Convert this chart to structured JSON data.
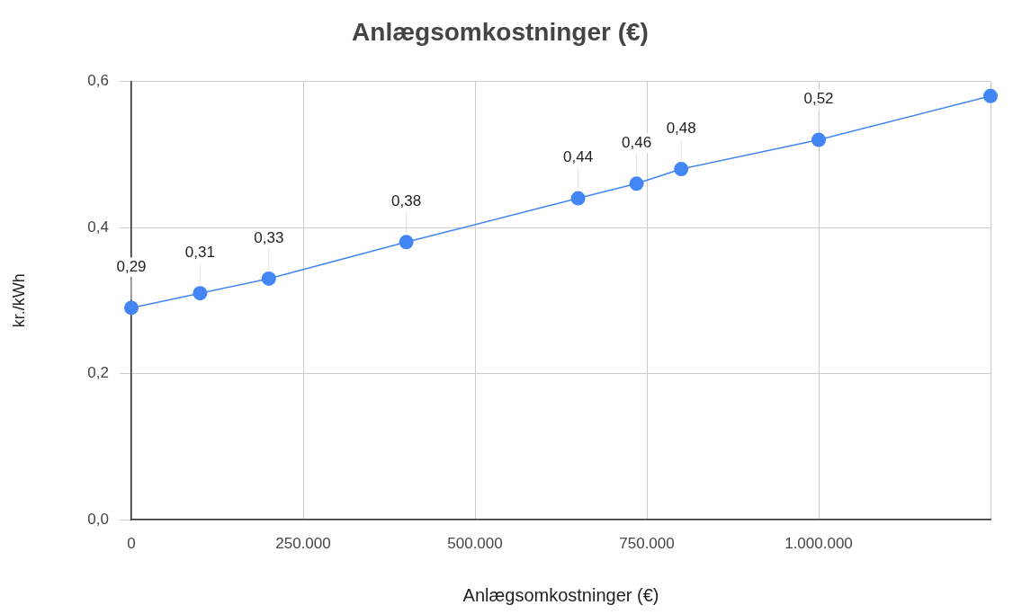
{
  "chart_data": {
    "type": "line",
    "title": "Anlægsomkostninger (€)",
    "xlabel": "Anlægsomkostninger (€)",
    "ylabel": "kr./kWh",
    "x": [
      0,
      100000,
      200000,
      400000,
      650000,
      735000,
      800000,
      1000000,
      1250000
    ],
    "series": [
      {
        "color": "#4285f4",
        "values": [
          0.29,
          0.31,
          0.33,
          0.38,
          0.44,
          0.46,
          0.48,
          0.52,
          0.58
        ],
        "value_labels": [
          "0,29",
          "0,31",
          "0,33",
          "0,38",
          "0,44",
          "0,46",
          "0,48",
          "0,52",
          null
        ]
      }
    ],
    "xlim": [
      0,
      1250000
    ],
    "xticks": [
      0,
      {
        "value": 250000,
        "label": "250.000"
      },
      {
        "value": 500000,
        "label": "500.000"
      },
      {
        "value": 750000,
        "label": "750.000"
      },
      {
        "value": 1000000,
        "label": "1.000.000"
      },
      {
        "value": 1250000,
        "label": null
      }
    ],
    "ylim": [
      0,
      0.6
    ],
    "yticks": [
      {
        "value": 0,
        "label": "0,0"
      },
      {
        "value": 0.2,
        "label": "0,2"
      },
      {
        "value": 0.4,
        "label": "0,4"
      },
      {
        "value": 0.6,
        "label": "0,6"
      }
    ],
    "grid": true,
    "marker": "circle",
    "line_style": "solid"
  }
}
